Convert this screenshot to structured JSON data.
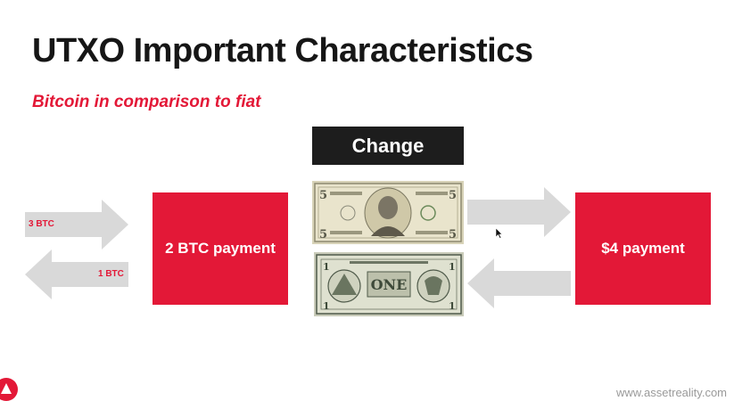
{
  "slide": {
    "title": "UTXO Important Characteristics",
    "subtitle": "Bitcoin in comparison to fiat",
    "change_label": "Change",
    "left_box_label": "2 BTC payment",
    "right_box_label": "$4 payment",
    "arrow_in_label": "3 BTC",
    "arrow_out_label": "1 BTC",
    "footer_url": "www.assetreality.com"
  },
  "colors": {
    "accent_red": "#e31837",
    "dark": "#1d1d1d",
    "arrow_gray": "#d9d9d9"
  },
  "icons": {
    "five_dollar_bill": "five-dollar-bill-icon",
    "one_dollar_bill": "one-dollar-bill-icon",
    "logo": "asset-reality-logo-icon"
  }
}
